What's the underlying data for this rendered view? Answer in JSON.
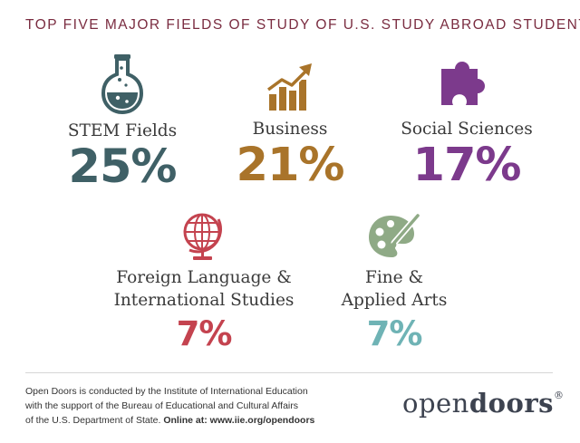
{
  "title": "TOP FIVE MAJOR FIELDS OF STUDY OF U.S. STUDY ABROAD STUDENTS",
  "chart_data": {
    "type": "table",
    "title": "TOP FIVE MAJOR FIELDS OF STUDY OF U.S. STUDY ABROAD STUDENTS",
    "categories": [
      "STEM Fields",
      "Business",
      "Social Sciences",
      "Foreign Language & International Studies",
      "Fine & Applied Arts"
    ],
    "values": [
      25,
      21,
      17,
      7,
      7
    ],
    "unit": "%"
  },
  "fields": [
    {
      "label_lines": [
        "STEM Fields"
      ],
      "value_text": "25%",
      "color": "#3f6066",
      "icon": "flask-icon"
    },
    {
      "label_lines": [
        "Business"
      ],
      "value_text": "21%",
      "color": "#a9742a",
      "icon": "rising-bar-chart-icon"
    },
    {
      "label_lines": [
        "Social Sciences"
      ],
      "value_text": "17%",
      "color": "#7c3a8c",
      "icon": "puzzle-piece-icon"
    },
    {
      "label_lines": [
        "Foreign Language &",
        "International Studies"
      ],
      "value_text": "7%",
      "color": "#c4434f",
      "icon": "globe-icon"
    },
    {
      "label_lines": [
        "Fine &",
        "Applied Arts"
      ],
      "value_text": "7%",
      "color": "#6fb3b5",
      "icon": "palette-icon"
    }
  ],
  "palette_icon_color": "#8faa86",
  "footer": {
    "line1": "Open Doors is conducted by the Institute of International Education",
    "line2": "with the support of the Bureau of Educational and Cultural Affairs",
    "line3": "of the U.S. Department of State.",
    "line3_bold": "Online at: www.iie.org/opendoors"
  },
  "logo": {
    "part1": "open",
    "part2": "doors",
    "mark": "®"
  }
}
